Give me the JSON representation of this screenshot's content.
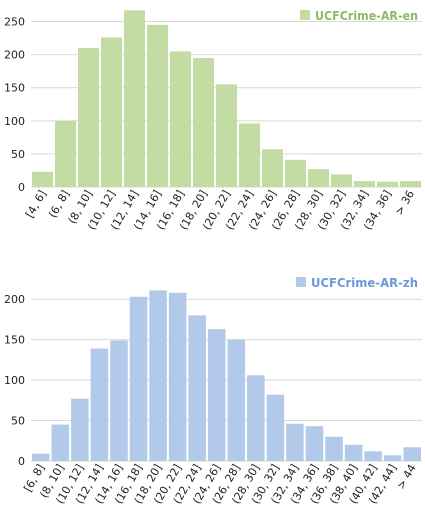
{
  "chart_data": [
    {
      "type": "bar",
      "title": "",
      "xlabel": "",
      "ylabel": "",
      "legend": "top-right",
      "grid": true,
      "ylim": [
        0,
        275
      ],
      "yticks": [
        0,
        50,
        100,
        150,
        200,
        250
      ],
      "color": "#c3dca4",
      "categories": [
        "[4, 6]",
        "(6, 8]",
        "(8, 10]",
        "(10, 12]",
        "(12, 14]",
        "(14, 16]",
        "(16, 18]",
        "(18, 20]",
        "(20, 22]",
        "(22, 24]",
        "(24, 26]",
        "(26, 28]",
        "(28, 30]",
        "(30, 32]",
        "(32, 34]",
        "(34, 36]",
        "> 36"
      ],
      "series": [
        {
          "name": "UCFCrime-AR-en",
          "values": [
            23,
            100,
            210,
            226,
            267,
            245,
            205,
            195,
            155,
            96,
            57,
            41,
            27,
            19,
            9,
            8,
            9
          ]
        }
      ]
    },
    {
      "type": "bar",
      "title": "",
      "xlabel": "",
      "ylabel": "",
      "legend": "top-right",
      "grid": true,
      "ylim": [
        0,
        225
      ],
      "yticks": [
        0,
        50,
        100,
        150,
        200
      ],
      "color": "#b2c9ea",
      "categories": [
        "[6, 8]",
        "(8, 10]",
        "(10, 12]",
        "(12, 14]",
        "(14, 16]",
        "(16, 18]",
        "(18, 20]",
        "(20, 22]",
        "(22, 24]",
        "(24, 26]",
        "(26, 28]",
        "(28, 30]",
        "(30, 32]",
        "(32, 34]",
        "(34, 36]",
        "(36, 38]",
        "(38, 40]",
        "(40, 42]",
        "(42, 44]",
        "> 44"
      ],
      "series": [
        {
          "name": "UCFCrime-AR-zh",
          "values": [
            9,
            45,
            77,
            139,
            149,
            203,
            211,
            208,
            180,
            163,
            150,
            106,
            82,
            46,
            43,
            30,
            20,
            12,
            7,
            17
          ]
        }
      ]
    }
  ]
}
